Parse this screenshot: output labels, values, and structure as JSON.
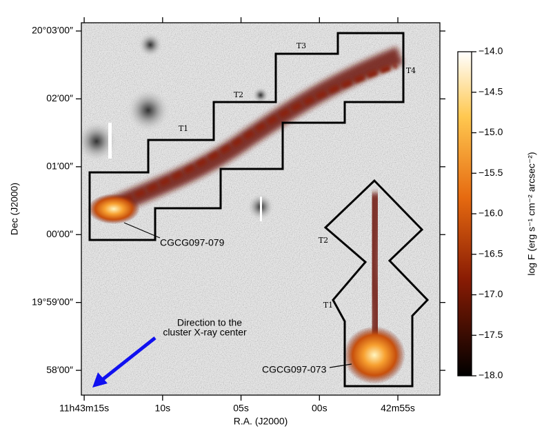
{
  "chart_data": {
    "type": "image",
    "xlabel": "R.A. (J2000)",
    "ylabel": "Dec (J2000)",
    "xlim": [
      15.18,
      -7.68
    ],
    "xticks": [
      {
        "value": 15,
        "label": "11h43m15s"
      },
      {
        "value": 10,
        "label": "10s"
      },
      {
        "value": 5,
        "label": "05s"
      },
      {
        "value": 0,
        "label": "00s"
      },
      {
        "value": -5,
        "label": "42m55s"
      }
    ],
    "ylim": [
      -141.9,
      187.3
    ],
    "yticks": [
      {
        "value": 180,
        "label": "20°03′00″"
      },
      {
        "value": 120,
        "label": "02′00″"
      },
      {
        "value": 60,
        "label": "01′00″"
      },
      {
        "value": 0,
        "label": "00′00″"
      },
      {
        "value": -60,
        "label": "19°59′00″"
      },
      {
        "value": -120,
        "label": "58′00″"
      }
    ],
    "colorbar": {
      "label": "log F (erg s⁻¹ cm⁻² arcsec⁻²)",
      "lim": [
        -18,
        -14
      ],
      "ticks": [
        {
          "value": -14,
          "label": "−14.0"
        },
        {
          "value": -14.5,
          "label": "−14.5"
        },
        {
          "value": -15,
          "label": "−15.0"
        },
        {
          "value": -15.5,
          "label": "−15.5"
        },
        {
          "value": -16,
          "label": "−16.0"
        },
        {
          "value": -16.5,
          "label": "−16.5"
        },
        {
          "value": -17,
          "label": "−17.0"
        },
        {
          "value": -17.5,
          "label": "−17.5"
        },
        {
          "value": -18,
          "label": "−18.0"
        }
      ]
    },
    "annotations": [
      "T1",
      "T2",
      "T3",
      "T4",
      "T2",
      "T1",
      "CGCG097-079",
      "CGCG097-073",
      "Direction to the",
      "cluster X-ray center"
    ]
  }
}
